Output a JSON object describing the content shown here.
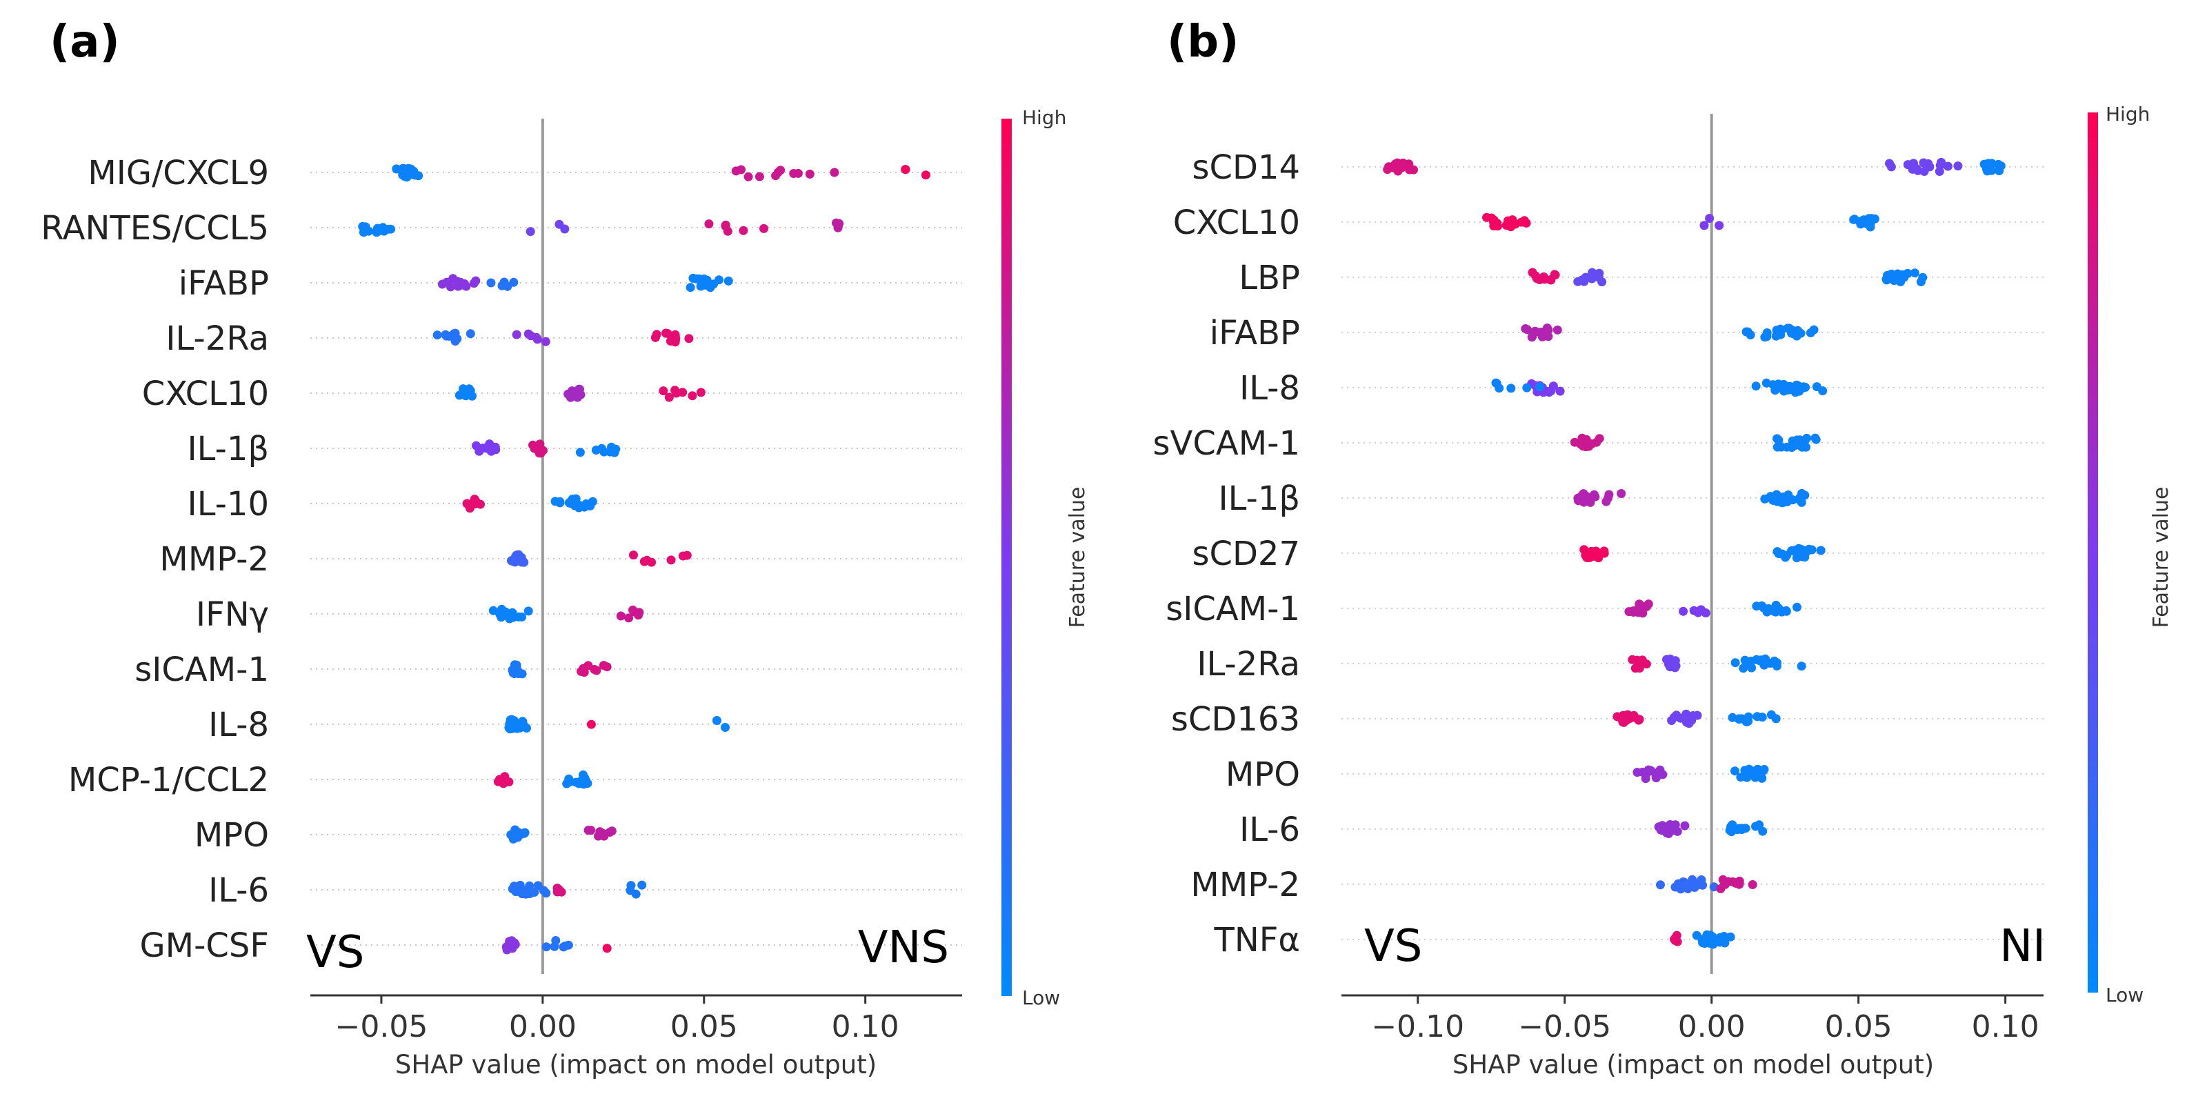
{
  "colors": {
    "low": "#008afb",
    "mid": "#7b3cf0",
    "high": "#ff0052",
    "axis": "#333333",
    "zero_line": "#999999",
    "grid": "#cccccc"
  },
  "chart_data": [
    {
      "panel_label": "(a)",
      "type": "scatter",
      "subtype": "shap-beeswarm",
      "xlabel": "SHAP value (impact on model output)",
      "xlim": [
        -0.072,
        0.13
      ],
      "xticks": [
        -0.05,
        0.0,
        0.05,
        0.1
      ],
      "xtick_labels": [
        "−0.05",
        "0.00",
        "0.05",
        "0.10"
      ],
      "left_annotation": "VS",
      "right_annotation": "VNS",
      "colorbar": {
        "label": "Feature value",
        "high": "High",
        "low": "Low"
      },
      "features": [
        {
          "name": "MIG/CXCL9",
          "clusters": [
            {
              "center": -0.042,
              "spread": 0.006,
              "n": 15,
              "value": 0.05
            },
            {
              "center": 0.07,
              "spread": 0.03,
              "n": 11,
              "value": 0.8
            },
            {
              "center": 0.115,
              "spread": 0.008,
              "n": 3,
              "value": 0.95
            }
          ]
        },
        {
          "name": "RANTES/CCL5",
          "clusters": [
            {
              "center": -0.052,
              "spread": 0.008,
              "n": 15,
              "value": 0.05
            },
            {
              "center": 0.005,
              "spread": 0.01,
              "n": 3,
              "value": 0.45
            },
            {
              "center": 0.06,
              "spread": 0.012,
              "n": 6,
              "value": 0.85
            },
            {
              "center": 0.092,
              "spread": 0.004,
              "n": 4,
              "value": 0.75
            }
          ]
        },
        {
          "name": "iFABP",
          "clusters": [
            {
              "center": -0.025,
              "spread": 0.01,
              "n": 12,
              "value": 0.55
            },
            {
              "center": -0.01,
              "spread": 0.008,
              "n": 5,
              "value": 0.15
            },
            {
              "center": 0.05,
              "spread": 0.012,
              "n": 14,
              "value": 0.05
            }
          ]
        },
        {
          "name": "IL-2Ra",
          "clusters": [
            {
              "center": -0.027,
              "spread": 0.007,
              "n": 9,
              "value": 0.15
            },
            {
              "center": -0.002,
              "spread": 0.007,
              "n": 6,
              "value": 0.55
            },
            {
              "center": 0.04,
              "spread": 0.01,
              "n": 12,
              "value": 0.9
            }
          ]
        },
        {
          "name": "CXCL10",
          "clusters": [
            {
              "center": -0.024,
              "spread": 0.004,
              "n": 12,
              "value": 0.05
            },
            {
              "center": 0.01,
              "spread": 0.006,
              "n": 9,
              "value": 0.65
            },
            {
              "center": 0.042,
              "spread": 0.008,
              "n": 7,
              "value": 0.9
            }
          ]
        },
        {
          "name": "IL-1β",
          "clusters": [
            {
              "center": -0.018,
              "spread": 0.006,
              "n": 10,
              "value": 0.5
            },
            {
              "center": -0.003,
              "spread": 0.006,
              "n": 8,
              "value": 0.85
            },
            {
              "center": 0.02,
              "spread": 0.01,
              "n": 9,
              "value": 0.05
            }
          ]
        },
        {
          "name": "IL-10",
          "clusters": [
            {
              "center": -0.022,
              "spread": 0.006,
              "n": 10,
              "value": 0.9
            },
            {
              "center": 0.01,
              "spread": 0.01,
              "n": 16,
              "value": 0.05
            }
          ]
        },
        {
          "name": "MMP-2",
          "clusters": [
            {
              "center": -0.008,
              "spread": 0.003,
              "n": 18,
              "value": 0.25
            },
            {
              "center": 0.035,
              "spread": 0.016,
              "n": 7,
              "value": 0.9
            }
          ]
        },
        {
          "name": "IFNγ",
          "clusters": [
            {
              "center": -0.01,
              "spread": 0.007,
              "n": 16,
              "value": 0.05
            },
            {
              "center": 0.03,
              "spread": 0.007,
              "n": 6,
              "value": 0.8
            }
          ]
        },
        {
          "name": "sICAM-1",
          "clusters": [
            {
              "center": -0.008,
              "spread": 0.003,
              "n": 14,
              "value": 0.1
            },
            {
              "center": 0.015,
              "spread": 0.008,
              "n": 8,
              "value": 0.85
            }
          ]
        },
        {
          "name": "IL-8",
          "clusters": [
            {
              "center": -0.008,
              "spread": 0.004,
              "n": 22,
              "value": 0.05
            },
            {
              "center": 0.015,
              "spread": 0.001,
              "n": 1,
              "value": 0.95
            },
            {
              "center": 0.056,
              "spread": 0.003,
              "n": 2,
              "value": 0.05
            }
          ]
        },
        {
          "name": "MCP-1/CCL2",
          "clusters": [
            {
              "center": -0.012,
              "spread": 0.004,
              "n": 9,
              "value": 0.9
            },
            {
              "center": 0.012,
              "spread": 0.006,
              "n": 12,
              "value": 0.05
            }
          ]
        },
        {
          "name": "MPO",
          "clusters": [
            {
              "center": -0.008,
              "spread": 0.003,
              "n": 12,
              "value": 0.1
            },
            {
              "center": 0.018,
              "spread": 0.008,
              "n": 10,
              "value": 0.75
            }
          ]
        },
        {
          "name": "IL-6",
          "clusters": [
            {
              "center": -0.006,
              "spread": 0.01,
              "n": 22,
              "value": 0.15
            },
            {
              "center": 0.005,
              "spread": 0.003,
              "n": 4,
              "value": 0.85
            },
            {
              "center": 0.029,
              "spread": 0.004,
              "n": 4,
              "value": 0.1
            }
          ]
        },
        {
          "name": "GM-CSF",
          "clusters": [
            {
              "center": -0.01,
              "spread": 0.004,
              "n": 14,
              "value": 0.55
            },
            {
              "center": 0.005,
              "spread": 0.005,
              "n": 6,
              "value": 0.15
            },
            {
              "center": 0.02,
              "spread": 0.001,
              "n": 1,
              "value": 0.95
            }
          ]
        }
      ]
    },
    {
      "panel_label": "(b)",
      "type": "scatter",
      "subtype": "shap-beeswarm",
      "xlabel": "SHAP value (impact on model output)",
      "xlim": [
        -0.126,
        0.113
      ],
      "xticks": [
        -0.1,
        -0.05,
        0.0,
        0.05,
        0.1
      ],
      "xtick_labels": [
        "−0.10",
        "−0.05",
        "0.00",
        "0.05",
        "0.10"
      ],
      "left_annotation": "VS",
      "right_annotation": "NI",
      "colorbar": {
        "label": "Feature value",
        "high": "High",
        "low": "Low"
      },
      "features": [
        {
          "name": "sCD14",
          "clusters": [
            {
              "center": -0.105,
              "spread": 0.008,
              "n": 16,
              "value": 0.85
            },
            {
              "center": 0.072,
              "spread": 0.015,
              "n": 20,
              "value": 0.45
            },
            {
              "center": 0.095,
              "spread": 0.006,
              "n": 12,
              "value": 0.05
            }
          ]
        },
        {
          "name": "CXCL10",
          "clusters": [
            {
              "center": -0.07,
              "spread": 0.01,
              "n": 18,
              "value": 0.95
            },
            {
              "center": 0.0,
              "spread": 0.01,
              "n": 3,
              "value": 0.5
            },
            {
              "center": 0.052,
              "spread": 0.006,
              "n": 16,
              "value": 0.05
            }
          ]
        },
        {
          "name": "LBP",
          "clusters": [
            {
              "center": -0.057,
              "spread": 0.006,
              "n": 10,
              "value": 0.9
            },
            {
              "center": -0.04,
              "spread": 0.008,
              "n": 14,
              "value": 0.4
            },
            {
              "center": 0.065,
              "spread": 0.012,
              "n": 18,
              "value": 0.05
            }
          ]
        },
        {
          "name": "iFABP",
          "clusters": [
            {
              "center": -0.058,
              "spread": 0.01,
              "n": 16,
              "value": 0.7
            },
            {
              "center": 0.025,
              "spread": 0.02,
              "n": 24,
              "value": 0.05
            }
          ]
        },
        {
          "name": "IL-8",
          "clusters": [
            {
              "center": -0.058,
              "spread": 0.008,
              "n": 12,
              "value": 0.5
            },
            {
              "center": -0.07,
              "spread": 0.015,
              "n": 6,
              "value": 0.05
            },
            {
              "center": 0.025,
              "spread": 0.016,
              "n": 24,
              "value": 0.05
            }
          ]
        },
        {
          "name": "sVCAM-1",
          "clusters": [
            {
              "center": -0.042,
              "spread": 0.006,
              "n": 14,
              "value": 0.8
            },
            {
              "center": 0.03,
              "spread": 0.01,
              "n": 20,
              "value": 0.05
            }
          ]
        },
        {
          "name": "IL-1β",
          "clusters": [
            {
              "center": -0.04,
              "spread": 0.012,
              "n": 16,
              "value": 0.7
            },
            {
              "center": 0.025,
              "spread": 0.01,
              "n": 20,
              "value": 0.05
            }
          ]
        },
        {
          "name": "sCD27",
          "clusters": [
            {
              "center": -0.04,
              "spread": 0.007,
              "n": 18,
              "value": 0.95
            },
            {
              "center": 0.03,
              "spread": 0.01,
              "n": 20,
              "value": 0.05
            }
          ]
        },
        {
          "name": "sICAM-1",
          "clusters": [
            {
              "center": -0.025,
              "spread": 0.007,
              "n": 14,
              "value": 0.75
            },
            {
              "center": -0.005,
              "spread": 0.006,
              "n": 5,
              "value": 0.5
            },
            {
              "center": 0.022,
              "spread": 0.009,
              "n": 18,
              "value": 0.05
            }
          ]
        },
        {
          "name": "IL-2Ra",
          "clusters": [
            {
              "center": -0.025,
              "spread": 0.005,
              "n": 10,
              "value": 0.9
            },
            {
              "center": -0.013,
              "spread": 0.004,
              "n": 10,
              "value": 0.45
            },
            {
              "center": 0.02,
              "spread": 0.014,
              "n": 16,
              "value": 0.05
            }
          ]
        },
        {
          "name": "sCD163",
          "clusters": [
            {
              "center": -0.028,
              "spread": 0.006,
              "n": 16,
              "value": 0.9
            },
            {
              "center": -0.01,
              "spread": 0.008,
              "n": 12,
              "value": 0.45
            },
            {
              "center": 0.015,
              "spread": 0.012,
              "n": 12,
              "value": 0.05
            }
          ]
        },
        {
          "name": "MPO",
          "clusters": [
            {
              "center": -0.02,
              "spread": 0.008,
              "n": 14,
              "value": 0.6
            },
            {
              "center": 0.015,
              "spread": 0.01,
              "n": 18,
              "value": 0.05
            }
          ]
        },
        {
          "name": "IL-6",
          "clusters": [
            {
              "center": -0.015,
              "spread": 0.007,
              "n": 16,
              "value": 0.6
            },
            {
              "center": 0.01,
              "spread": 0.012,
              "n": 14,
              "value": 0.05
            }
          ]
        },
        {
          "name": "MMP-2",
          "clusters": [
            {
              "center": -0.008,
              "spread": 0.012,
              "n": 22,
              "value": 0.2
            },
            {
              "center": 0.008,
              "spread": 0.008,
              "n": 12,
              "value": 0.8
            }
          ]
        },
        {
          "name": "TNFα",
          "clusters": [
            {
              "center": -0.012,
              "spread": 0.003,
              "n": 6,
              "value": 0.9
            },
            {
              "center": 0.0,
              "spread": 0.008,
              "n": 26,
              "value": 0.05
            }
          ]
        }
      ]
    }
  ]
}
